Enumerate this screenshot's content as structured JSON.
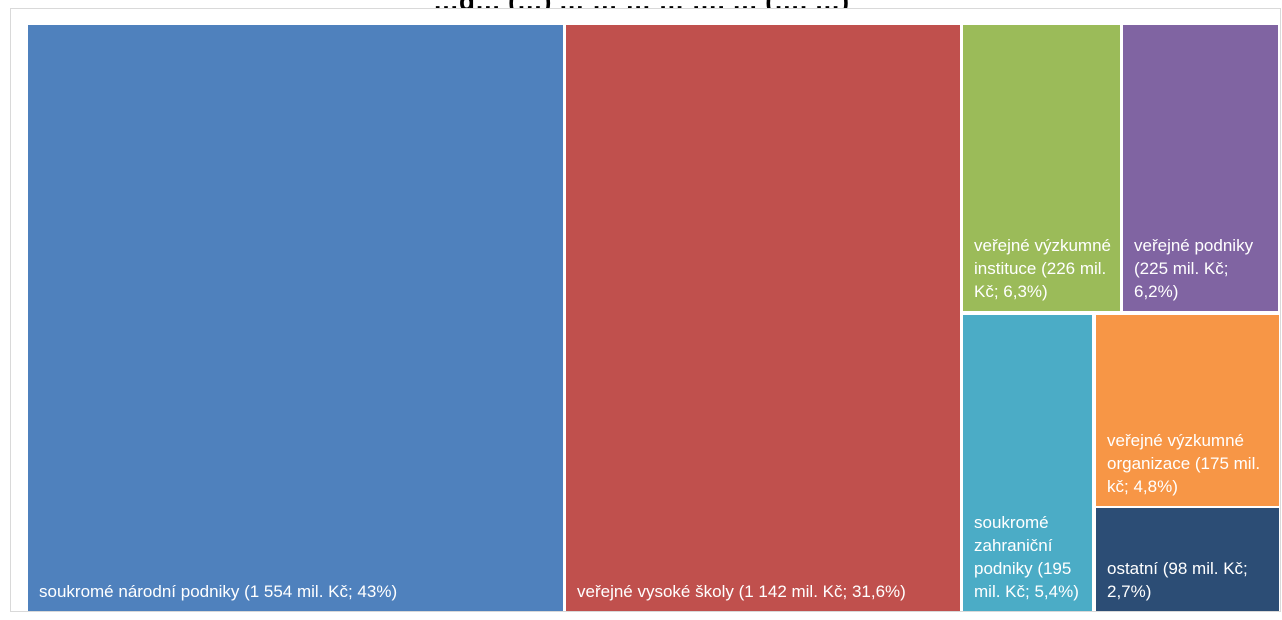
{
  "chart_data": {
    "type": "treemap",
    "title": "…g… (…) … … … … …, … (…, …)",
    "unit": "mil. Kč",
    "items": [
      {
        "name": "soukromé národní podniky",
        "value": 1554,
        "share": 43.0,
        "color": "#4f81bd",
        "label": "soukromé národní podniky (1 554 mil. Kč; 43%)"
      },
      {
        "name": "veřejné vysoké školy",
        "value": 1142,
        "share": 31.6,
        "color": "#c0504d",
        "label": "veřejné vysoké školy (1 142 mil. Kč; 31,6%)"
      },
      {
        "name": "veřejné výzkumné instituce",
        "value": 226,
        "share": 6.3,
        "color": "#9bbb59",
        "label": "veřejné výzkumné instituce (226 mil. Kč; 6,3%)"
      },
      {
        "name": "veřejné podniky",
        "value": 225,
        "share": 6.2,
        "color": "#8064a2",
        "label": "veřejné podniky (225 mil. Kč; 6,2%)"
      },
      {
        "name": "soukromé zahraniční podniky",
        "value": 195,
        "share": 5.4,
        "color": "#4bacc6",
        "label": "soukromé zahraniční podniky (195 mil. Kč; 5,4%)"
      },
      {
        "name": "veřejné výzkumné organizace",
        "value": 175,
        "share": 4.8,
        "color": "#f79646",
        "label": "veřejné výzkumné organizace (175 mil. kč; 4,8%)"
      },
      {
        "name": "ostatní",
        "value": 98,
        "share": 2.7,
        "color": "#2c4d75",
        "label": "ostatní (98 mil. Kč; 2,7%)"
      }
    ]
  }
}
